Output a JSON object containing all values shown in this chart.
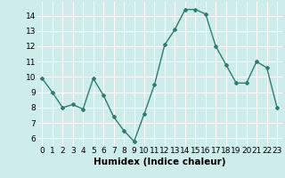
{
  "x": [
    0,
    1,
    2,
    3,
    4,
    5,
    6,
    7,
    8,
    9,
    10,
    11,
    12,
    13,
    14,
    15,
    16,
    17,
    18,
    19,
    20,
    21,
    22,
    23
  ],
  "y": [
    9.9,
    9.0,
    8.0,
    8.2,
    7.9,
    9.9,
    8.8,
    7.4,
    6.5,
    5.8,
    7.6,
    9.5,
    12.1,
    13.1,
    14.4,
    14.4,
    14.1,
    12.0,
    10.8,
    9.6,
    9.6,
    11.0,
    10.6,
    8.0
  ],
  "line_color": "#2e7d6e",
  "marker": "D",
  "marker_size": 2,
  "linewidth": 1.0,
  "bg_color": "#cdecea",
  "grid_color": "#ffffff",
  "xlabel": "Humidex (Indice chaleur)",
  "xlabel_fontsize": 7.5,
  "ylabel_ticks": [
    6,
    7,
    8,
    9,
    10,
    11,
    12,
    13,
    14
  ],
  "ylim": [
    5.5,
    14.9
  ],
  "xlim": [
    -0.5,
    23.5
  ],
  "tick_fontsize": 6.5
}
